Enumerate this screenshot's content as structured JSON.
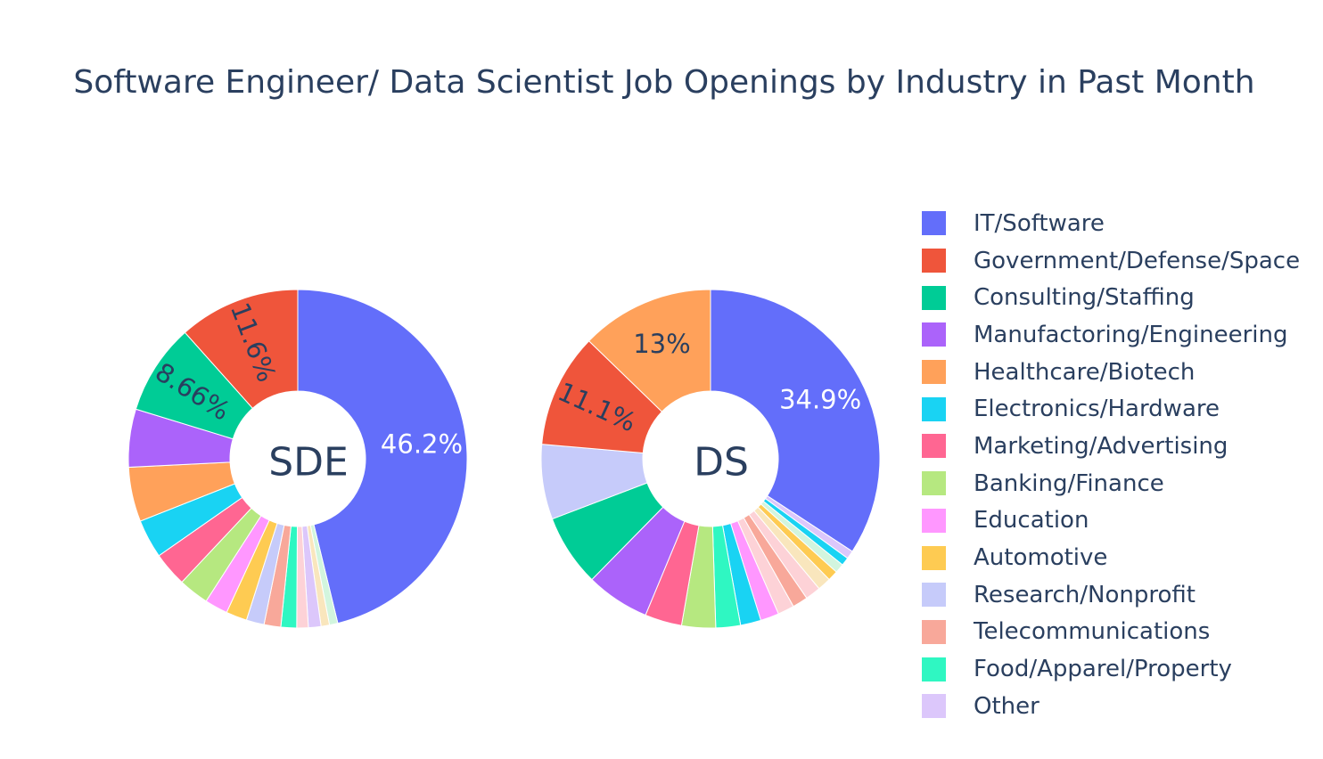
{
  "chart_data": {
    "type": "pie",
    "title": "Software Engineer/ Data Scientist Job Openings by Industry in Past Month",
    "legend_position": "right",
    "categories": [
      "IT/Software",
      "Government/Defense/Space",
      "Consulting/Staffing",
      "Manufactoring/Engineering",
      "Healthcare/Biotech",
      "Electronics/Hardware",
      "Marketing/Advertising",
      "Banking/Finance",
      "Education",
      "Automotive",
      "Research/Nonprofit",
      "Telecommunications",
      "Food/Apparel/Property",
      "Other"
    ],
    "colors": [
      "#636efa",
      "#ef553b",
      "#00cc96",
      "#ab63fa",
      "#ffa15a",
      "#19d3f3",
      "#ff6692",
      "#b6e880",
      "#ff97ff",
      "#fecb52",
      "#c6cbfa",
      "#f8a89a",
      "#2ff7c2",
      "#dcc7fb",
      "#fdd2d7",
      "#f9e6bd",
      "#d2f5de"
    ],
    "pies": [
      {
        "name": "SDE",
        "hole_label": "SDE",
        "slices": [
          {
            "label": "IT/Software",
            "value": 46.2,
            "text": "46.2%",
            "color": "#636efa"
          },
          {
            "label": "",
            "value": 0.8,
            "text": "",
            "color": "#d2f5de"
          },
          {
            "label": "",
            "value": 0.8,
            "text": "",
            "color": "#f9e6bd"
          },
          {
            "label": "Other",
            "value": 1.2,
            "text": "",
            "color": "#dcc7fb"
          },
          {
            "label": "",
            "value": 1.1,
            "text": "",
            "color": "#fdd2d7"
          },
          {
            "label": "Food/Apparel/Property",
            "value": 1.5,
            "text": "",
            "color": "#2ff7c2"
          },
          {
            "label": "Telecommunications",
            "value": 1.6,
            "text": "",
            "color": "#f8a89a"
          },
          {
            "label": "Research/Nonprofit",
            "value": 1.7,
            "text": "",
            "color": "#c6cbfa"
          },
          {
            "label": "Automotive",
            "value": 2.0,
            "text": "",
            "color": "#fecb52"
          },
          {
            "label": "Education",
            "value": 2.2,
            "text": "",
            "color": "#ff97ff"
          },
          {
            "label": "Banking/Finance",
            "value": 2.9,
            "text": "",
            "color": "#b6e880"
          },
          {
            "label": "Marketing/Advertising",
            "value": 3.3,
            "text": "",
            "color": "#ff6692"
          },
          {
            "label": "Electronics/Hardware",
            "value": 3.7,
            "text": "",
            "color": "#19d3f3"
          },
          {
            "label": "Healthcare/Biotech",
            "value": 5.2,
            "text": "",
            "color": "#ffa15a"
          },
          {
            "label": "Manufactoring/Engineering",
            "value": 5.54,
            "text": "",
            "color": "#ab63fa"
          },
          {
            "label": "Consulting/Staffing",
            "value": 8.66,
            "text": "8.66%",
            "color": "#00cc96"
          },
          {
            "label": "Government/Defense/Space",
            "value": 11.6,
            "text": "11.6%",
            "color": "#ef553b"
          }
        ]
      },
      {
        "name": "DS",
        "hole_label": "DS",
        "slices": [
          {
            "label": "IT/Software",
            "value": 34.9,
            "text": "34.9%",
            "color": "#636efa"
          },
          {
            "label": "Other",
            "value": 0.8,
            "text": "",
            "color": "#dcc7fb"
          },
          {
            "label": "Electronics/Hardware",
            "value": 0.8,
            "text": "",
            "color": "#19d3f3"
          },
          {
            "label": "",
            "value": 0.9,
            "text": "",
            "color": "#d2f5de"
          },
          {
            "label": "Automotive",
            "value": 1.0,
            "text": "",
            "color": "#fecb52"
          },
          {
            "label": "",
            "value": 1.3,
            "text": "",
            "color": "#f9e6bd"
          },
          {
            "label": "",
            "value": 1.5,
            "text": "",
            "color": "#fdd2d7"
          },
          {
            "label": "Telecommunications",
            "value": 1.5,
            "text": "",
            "color": "#f8a89a"
          },
          {
            "label": "",
            "value": 1.6,
            "text": "",
            "color": "#fdd2d7"
          },
          {
            "label": "Education",
            "value": 1.8,
            "text": "",
            "color": "#ff97ff"
          },
          {
            "label": "Electronics/Hardware",
            "value": 2.0,
            "text": "",
            "color": "#19d3f3"
          },
          {
            "label": "Food/Apparel/Property",
            "value": 2.4,
            "text": "",
            "color": "#2ff7c2"
          },
          {
            "label": "Banking/Finance",
            "value": 3.3,
            "text": "",
            "color": "#b6e880"
          },
          {
            "label": "Marketing/Advertising",
            "value": 3.6,
            "text": "",
            "color": "#ff6692"
          },
          {
            "label": "Manufactoring/Engineering",
            "value": 6.2,
            "text": "",
            "color": "#ab63fa"
          },
          {
            "label": "Consulting/Staffing",
            "value": 7.0,
            "text": "",
            "color": "#00cc96"
          },
          {
            "label": "Research/Nonprofit",
            "value": 7.3,
            "text": "",
            "color": "#c6cbfa"
          },
          {
            "label": "Government/Defense/Space",
            "value": 11.1,
            "text": "11.1%",
            "color": "#ef553b"
          },
          {
            "label": "Healthcare/Biotech",
            "value": 13.0,
            "text": "13%",
            "color": "#ffa15a"
          }
        ]
      }
    ]
  }
}
